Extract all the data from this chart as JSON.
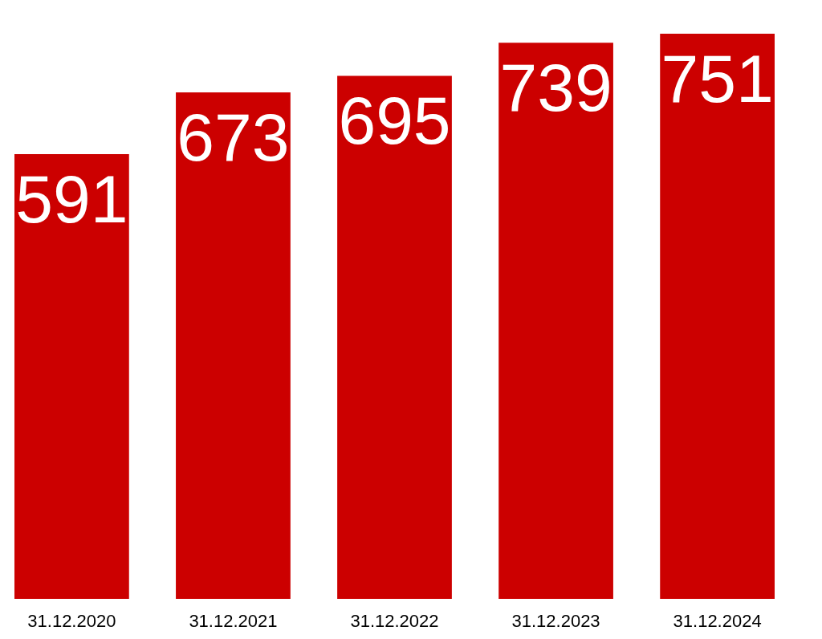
{
  "chart_data": {
    "type": "bar",
    "categories": [
      "31.12.2020",
      "31.12.2021",
      "31.12.2022",
      "31.12.2023",
      "31.12.2024"
    ],
    "values": [
      591,
      673,
      695,
      739,
      751
    ],
    "color": "#cc0000",
    "data_labels": true
  }
}
